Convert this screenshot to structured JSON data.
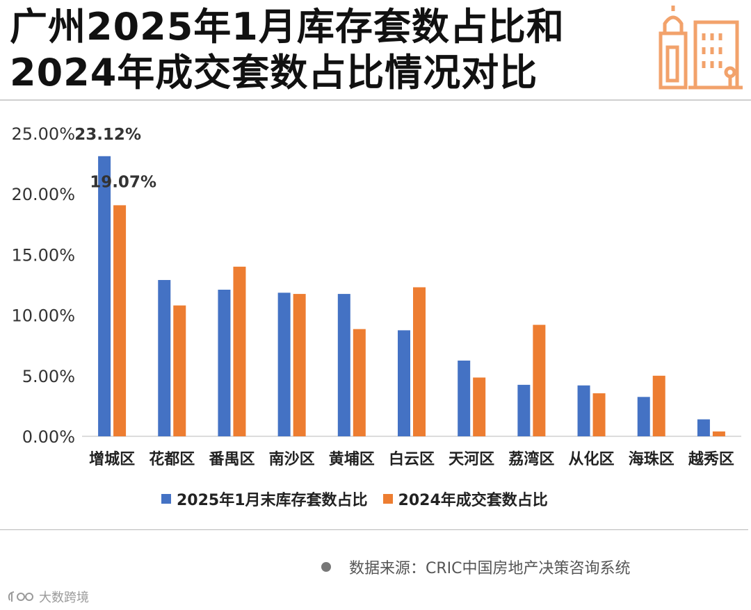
{
  "title": {
    "line1": "广州2025年1月库存套数占比和",
    "line2": "2024年成交套数占比情况对比"
  },
  "colors": {
    "inventory": "#4472C4",
    "deal": "#ED7D31",
    "logo": "#F2A26B"
  },
  "chart_data": {
    "type": "bar",
    "categories": [
      "增城区",
      "花都区",
      "番禺区",
      "南沙区",
      "黄埔区",
      "白云区",
      "天河区",
      "荔湾区",
      "从化区",
      "海珠区",
      "越秀区"
    ],
    "series": [
      {
        "name": "2025年1月末库存套数占比",
        "values": [
          23.12,
          12.9,
          12.1,
          11.85,
          11.75,
          8.75,
          6.25,
          4.25,
          4.2,
          3.25,
          1.4
        ]
      },
      {
        "name": "2024年成交套数占比",
        "values": [
          19.07,
          10.8,
          14.0,
          11.75,
          8.85,
          12.3,
          4.85,
          9.2,
          3.55,
          5.0,
          0.4
        ]
      }
    ],
    "data_labels": [
      {
        "series": 0,
        "index": 0,
        "text": "23.12%"
      },
      {
        "series": 1,
        "index": 0,
        "text": "19.07%"
      }
    ],
    "ylim": [
      0,
      25
    ],
    "yticks": [
      "0.00%",
      "5.00%",
      "10.00%",
      "15.00%",
      "20.00%",
      "25.00%"
    ],
    "grid": false,
    "legend": "bottom"
  },
  "source": "数据来源：CRIC中国房地产决策咨询系统",
  "watermark": "大数跨境",
  "icons": {
    "logo": "building-icon",
    "source_dot": "bullet-dot-icon",
    "watermark": "ie-logo-icon"
  }
}
